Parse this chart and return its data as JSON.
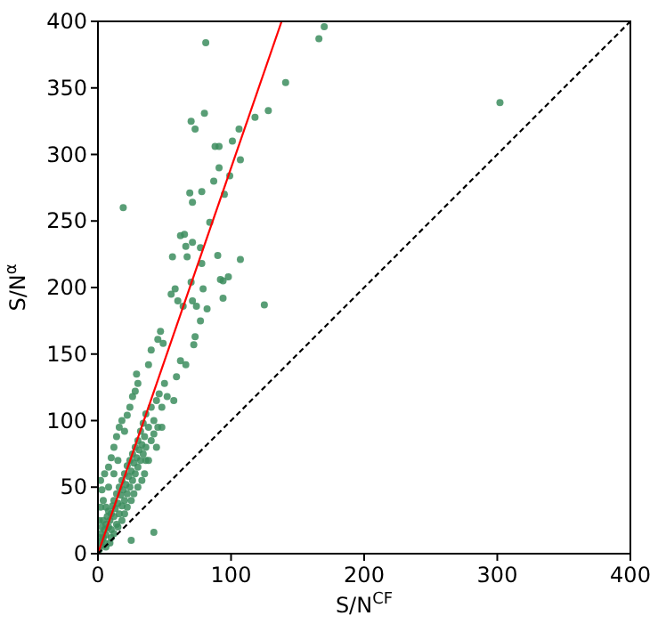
{
  "chart_data": {
    "type": "scatter",
    "xlabel": "S/N$^{CF}$",
    "ylabel": "S/N$^{α}$",
    "xlim": [
      0,
      400
    ],
    "ylim": [
      0,
      400
    ],
    "xticks": [
      0,
      100,
      200,
      300,
      400
    ],
    "yticks": [
      0,
      50,
      100,
      150,
      200,
      250,
      300,
      350,
      400
    ],
    "grid": false,
    "series": [
      {
        "marker": "circle",
        "color": "#3c8d5e",
        "x": [
          170,
          166,
          81,
          141,
          128,
          118,
          80,
          70,
          73,
          106,
          101,
          88,
          91,
          107,
          91,
          99,
          87,
          69,
          78,
          95,
          71,
          84,
          62,
          65,
          71,
          66,
          77,
          56,
          67,
          90,
          107,
          78,
          98,
          94,
          70,
          92,
          58,
          55,
          79,
          94,
          60,
          64,
          71,
          74,
          82,
          125,
          302,
          19,
          77,
          47,
          45,
          73,
          72,
          49,
          40,
          62,
          66,
          59,
          38,
          29,
          57,
          42,
          25,
          1,
          2,
          3,
          2,
          4,
          5,
          3,
          4,
          5,
          6,
          6,
          7,
          8,
          8,
          9,
          10,
          10,
          11,
          12,
          12,
          13,
          14,
          14,
          15,
          16,
          16,
          17,
          18,
          18,
          19,
          20,
          20,
          21,
          22,
          22,
          23,
          24,
          24,
          25,
          26,
          26,
          27,
          28,
          28,
          29,
          30,
          30,
          31,
          32,
          32,
          33,
          34,
          34,
          35,
          36,
          36,
          38,
          40,
          40,
          42,
          44,
          45,
          46,
          48,
          50,
          52,
          35,
          38,
          30,
          25,
          20,
          15,
          10,
          6,
          4,
          3,
          2,
          5,
          8,
          10,
          12,
          14,
          16,
          18,
          20,
          22,
          24,
          26,
          28,
          30,
          15,
          12,
          8,
          2,
          1,
          0,
          1,
          6,
          9,
          12,
          18,
          22,
          27,
          33,
          36,
          42,
          44,
          48
        ],
        "values": [
          396,
          387,
          384,
          354,
          333,
          328,
          331,
          325,
          319,
          319,
          310,
          306,
          306,
          296,
          290,
          284,
          280,
          271,
          272,
          270,
          264,
          249,
          239,
          240,
          234,
          231,
          230,
          223,
          223,
          224,
          221,
          218,
          208,
          205,
          204,
          206,
          199,
          195,
          199,
          192,
          190,
          186,
          190,
          186,
          184,
          187,
          339,
          260,
          175,
          167,
          161,
          163,
          157,
          158,
          153,
          145,
          142,
          133,
          142,
          135,
          115,
          16,
          10,
          3,
          6,
          10,
          15,
          12,
          8,
          20,
          25,
          18,
          22,
          14,
          28,
          20,
          32,
          25,
          30,
          18,
          36,
          28,
          40,
          34,
          45,
          22,
          38,
          50,
          30,
          44,
          55,
          36,
          48,
          60,
          40,
          52,
          66,
          45,
          58,
          70,
          50,
          62,
          75,
          55,
          68,
          80,
          60,
          72,
          85,
          65,
          78,
          92,
          70,
          82,
          98,
          75,
          88,
          105,
          80,
          95,
          110,
          85,
          100,
          115,
          95,
          120,
          110,
          128,
          118,
          60,
          70,
          50,
          40,
          30,
          20,
          12,
          35,
          40,
          48,
          55,
          60,
          65,
          72,
          80,
          88,
          95,
          100,
          92,
          104,
          110,
          118,
          122,
          128,
          70,
          60,
          50,
          35,
          25,
          8,
          12,
          5,
          8,
          15,
          25,
          35,
          45,
          55,
          70,
          90,
          80,
          95
        ]
      },
      {
        "type": "line",
        "marker": "none",
        "color": "#ff0000",
        "line_style": "solid",
        "x": [
          0,
          138
        ],
        "values": [
          0,
          400
        ]
      },
      {
        "type": "line",
        "marker": "none",
        "color": "#000000",
        "line_style": "dashed",
        "x": [
          0,
          400
        ],
        "values": [
          0,
          400
        ]
      }
    ]
  }
}
